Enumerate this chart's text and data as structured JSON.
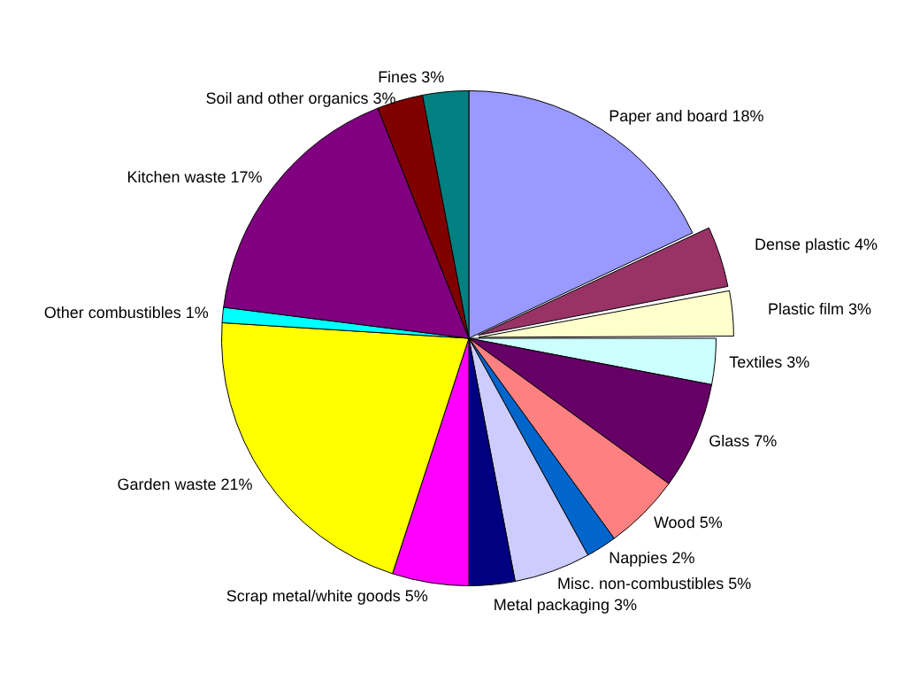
{
  "chart_data": {
    "type": "pie",
    "categories": [
      "Paper and board",
      "Dense plastic",
      "Plastic film",
      "Textiles",
      "Glass",
      "Wood",
      "Nappies",
      "Misc. non-combustibles",
      "Metal packaging",
      "Scrap metal/white goods",
      "Garden waste",
      "Other combustibles",
      "Kitchen waste",
      "Soil and other organics",
      "Fines"
    ],
    "values": [
      18,
      4,
      3,
      3,
      7,
      5,
      2,
      5,
      3,
      5,
      21,
      1,
      17,
      3,
      3
    ],
    "value_labels": [
      "18%",
      "4%",
      "3%",
      "3%",
      "7%",
      "5%",
      "2%",
      "5%",
      "3%",
      "5%",
      "21%",
      "1%",
      "17%",
      "3%",
      "3%"
    ],
    "colors": [
      "#9999ff",
      "#993366",
      "#ffffcc",
      "#ccffff",
      "#660066",
      "#ff8080",
      "#0066cc",
      "#ccccff",
      "#000080",
      "#ff00ff",
      "#ffff00",
      "#00ffff",
      "#800080",
      "#800000",
      "#008080"
    ],
    "legend": false
  }
}
